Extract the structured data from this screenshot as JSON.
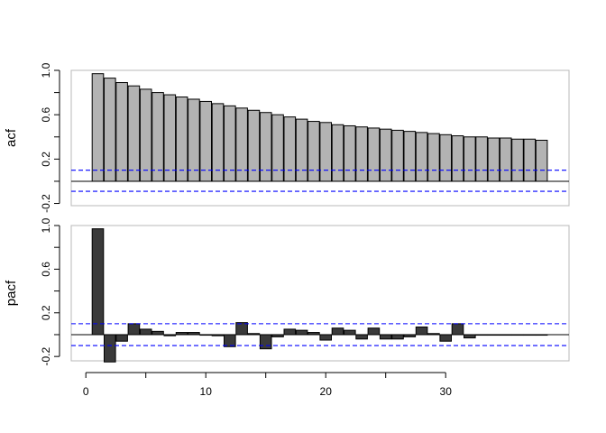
{
  "chart_data": [
    {
      "type": "bar",
      "ylabel": "acf",
      "xlabel": "",
      "title": "",
      "bar_color": "#b3b3b3",
      "ylim": [
        -0.22,
        1.0
      ],
      "yticks": [
        -0.2,
        0.2,
        0.6,
        1.0
      ],
      "yticklabels": [
        "-0.2",
        "0.2",
        "0.6",
        "1.0"
      ],
      "confidence_band": [
        0.1,
        -0.09
      ],
      "confidence_color": "#0000ff",
      "x": [
        1,
        2,
        3,
        4,
        5,
        6,
        7,
        8,
        9,
        10,
        11,
        12,
        13,
        14,
        15,
        16,
        17,
        18,
        19,
        20,
        21,
        22,
        23,
        24,
        25,
        26,
        27,
        28,
        29,
        30,
        31,
        32,
        33,
        34,
        35,
        36,
        37,
        38
      ],
      "values": [
        0.97,
        0.93,
        0.89,
        0.86,
        0.83,
        0.8,
        0.78,
        0.76,
        0.74,
        0.72,
        0.7,
        0.68,
        0.66,
        0.64,
        0.62,
        0.6,
        0.58,
        0.56,
        0.54,
        0.53,
        0.51,
        0.5,
        0.49,
        0.48,
        0.47,
        0.46,
        0.45,
        0.44,
        0.43,
        0.42,
        0.41,
        0.4,
        0.4,
        0.39,
        0.39,
        0.38,
        0.38,
        0.37
      ]
    },
    {
      "type": "bar",
      "ylabel": "pacf",
      "xlabel": "",
      "title": "",
      "bar_color": "#3a3a3a",
      "ylim": [
        -0.24,
        1.0
      ],
      "yticks": [
        -0.2,
        0.2,
        0.6,
        1.0
      ],
      "yticklabels": [
        "-0.2",
        "0.2",
        "0.6",
        "1.0"
      ],
      "xticks": [
        0,
        10,
        20,
        30
      ],
      "xticklabels": [
        "0",
        "10",
        "20",
        "30"
      ],
      "confidence_band": [
        0.1,
        -0.1
      ],
      "confidence_color": "#0000ff",
      "x": [
        1,
        2,
        3,
        4,
        5,
        6,
        7,
        8,
        9,
        10,
        11,
        12,
        13,
        14,
        15,
        16,
        17,
        18,
        19,
        20,
        21,
        22,
        23,
        24,
        25,
        26,
        27,
        28,
        29,
        30,
        31,
        32,
        33,
        34,
        35,
        36,
        37,
        38
      ],
      "values": [
        0.97,
        -0.25,
        -0.06,
        0.1,
        0.05,
        0.03,
        -0.01,
        0.02,
        0.02,
        0.0,
        -0.01,
        -0.11,
        0.11,
        0.01,
        -0.13,
        -0.02,
        0.05,
        0.04,
        0.02,
        -0.05,
        0.06,
        0.04,
        -0.04,
        0.06,
        -0.04,
        -0.04,
        -0.02,
        0.07,
        0.01,
        -0.06,
        0.1,
        -0.03,
        0.0,
        0.0,
        0.0,
        0.0,
        0.0,
        0.0
      ]
    }
  ]
}
